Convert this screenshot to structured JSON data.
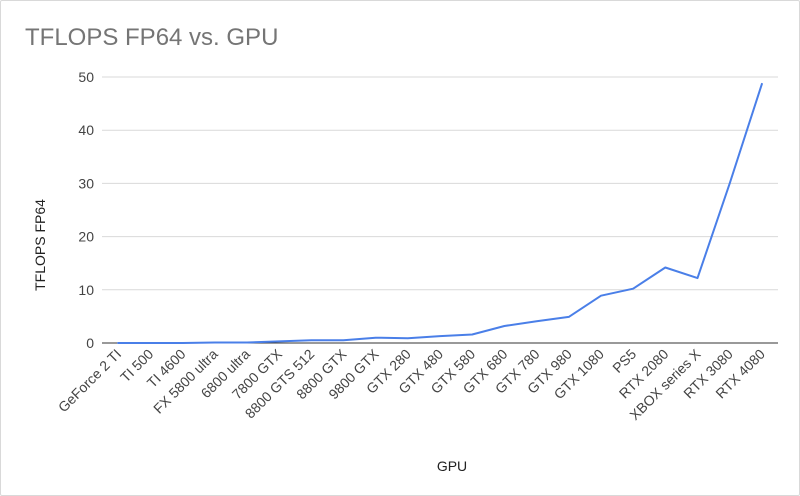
{
  "chart_data": {
    "type": "line",
    "title": "TFLOPS FP64 vs. GPU",
    "xlabel": "GPU",
    "ylabel": "TFLOPS FP64",
    "ylim": [
      0,
      50
    ],
    "yticks": [
      0,
      10,
      20,
      30,
      40,
      50
    ],
    "grid": true,
    "categories": [
      "GeForce 2 TI",
      "TI 500",
      "TI 4600",
      "FX 5800 ultra",
      "6800 ultra",
      "7800 GTX",
      "8800 GTS 512",
      "8800 GTX",
      "9800 GTX",
      "GTX 280",
      "GTX 480",
      "GTX 580",
      "GTX 680",
      "GTX 780",
      "GTX 980",
      "GTX 1080",
      "PS5",
      "RTX 2080",
      "XBOX series X",
      "RTX 3080",
      "RTX 4080"
    ],
    "series": [
      {
        "values": [
          0.0,
          0.0,
          0.0,
          0.1,
          0.1,
          0.3,
          0.5,
          0.5,
          1.0,
          0.9,
          1.3,
          1.6,
          3.2,
          4.1,
          4.9,
          8.9,
          10.2,
          14.2,
          12.2,
          30.0,
          48.7
        ],
        "color": "#4a7fe8"
      }
    ],
    "colors": {
      "line": "#4a7fe8",
      "grid": "#d9d9d9",
      "title": "#757575"
    }
  }
}
